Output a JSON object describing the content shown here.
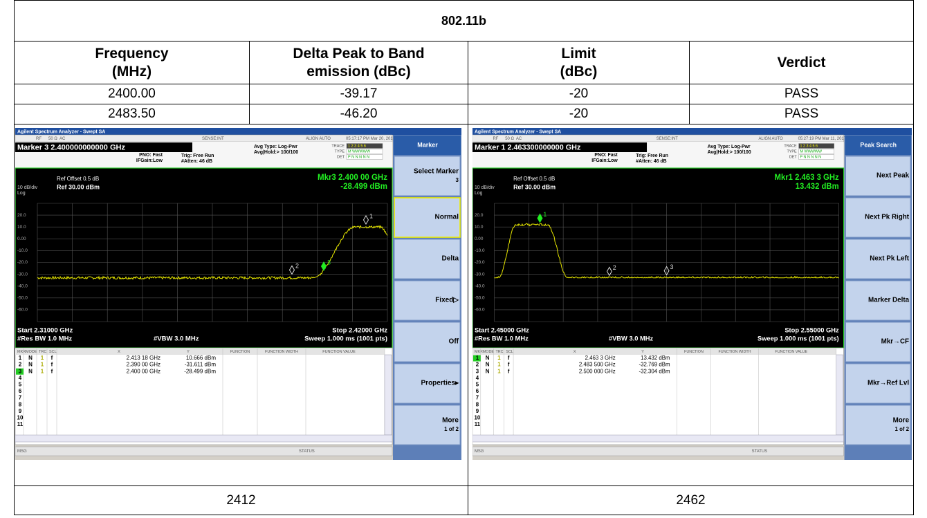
{
  "table": {
    "title": "802.11b",
    "header": [
      [
        "Frequency",
        "(MHz)"
      ],
      [
        "Delta Peak to Band",
        "emission (dBc)"
      ],
      [
        "Limit",
        "(dBc)"
      ],
      [
        "Verdict"
      ]
    ],
    "rows": [
      [
        "2400.00",
        "-39.17",
        "-20",
        "PASS"
      ],
      [
        "2483.50",
        "-46.20",
        "-20",
        "PASS"
      ]
    ]
  },
  "screens": [
    {
      "app": "Agilent Spectrum Analyzer - Swept SA",
      "status_bar": [
        "RF",
        "50 Ω",
        "AC",
        "SENSE:INT",
        "ALIGN AUTO",
        "05:17:17 PM Mar 20, 2017"
      ],
      "marker_readout": "Marker 3 2.400000000000 GHz",
      "settings": [
        "PNO: Fast",
        "IFGain:Low",
        "Trig: Free Run",
        "#Atten: 46 dB",
        "Avg Type: Log-Pwr",
        "Avg|Hold:> 100/100"
      ],
      "trace_labels": [
        "TRACE",
        "TYPE",
        "DET"
      ],
      "trace_codes": [
        "1 2 3 4 5 6",
        "M WWWWW",
        "P N N N N N"
      ],
      "ref_offset": "Ref Offset 0.5 dB",
      "scale": "10 dB/div",
      "ref_level": "Ref 30.00 dBm",
      "log": "Log",
      "mkr": [
        "Mkr3 2.400 00 GHz",
        "-28.499 dBm"
      ],
      "y_labels": [
        "20.0",
        "10.0",
        "0.00",
        "-10.0",
        "-20.0",
        "-30.0",
        "-40.0",
        "-50.0",
        "-60.0"
      ],
      "start": "Start 2.31000 GHz",
      "stop": "Stop 2.42000 GHz",
      "rbw": "#Res BW 1.0 MHz",
      "vbw": "#VBW 3.0 MHz",
      "sweep": "Sweep  1.000 ms (1001 pts)",
      "marker_labels": [
        "1",
        "2",
        "3"
      ],
      "table_header": [
        "MKR",
        "MODE",
        "TRC",
        "SCL",
        "X",
        "Y",
        "FUNCTION",
        "FUNCTION WIDTH",
        "FUNCTION VALUE"
      ],
      "markers": [
        [
          "1",
          "N",
          "1",
          "f",
          "2.413 18 GHz",
          "10.666 dBm"
        ],
        [
          "2",
          "N",
          "1",
          "f",
          "2.390 00 GHz",
          "-31.611 dBm"
        ],
        [
          "3",
          "N",
          "1",
          "f",
          "2.400 00 GHz",
          "-28.499 dBm"
        ]
      ],
      "empty_rows": [
        "4",
        "5",
        "6",
        "7",
        "8",
        "9",
        "10",
        "11"
      ],
      "msg": "MSG",
      "status": "STATUS",
      "menu_title": "Marker",
      "softkeys": [
        [
          "Select Marker",
          "3"
        ],
        [
          "Normal"
        ],
        [
          "Delta"
        ],
        [
          "Fixed▷"
        ],
        [
          "Off"
        ],
        [
          "Properties▸"
        ],
        [
          "More",
          "1 of 2"
        ]
      ]
    },
    {
      "app": "Agilent Spectrum Analyzer - Swept SA",
      "status_bar": [
        "RF",
        "50 Ω",
        "AC",
        "SENSE:INT",
        "ALIGN AUTO",
        "05:27:19 PM Mar 11, 2017"
      ],
      "marker_readout": "Marker 1 2.463300000000 GHz",
      "settings": [
        "PNO: Fast",
        "IFGain:Low",
        "Trig: Free Run",
        "#Atten: 46 dB",
        "Avg Type: Log-Pwr",
        "Avg|Hold:> 100/100"
      ],
      "trace_labels": [
        "TRACE",
        "TYPE",
        "DET"
      ],
      "trace_codes": [
        "1 2 3 4 5 6",
        "M WWWWW",
        "P N N N N N"
      ],
      "ref_offset": "Ref Offset 0.5 dB",
      "scale": "10 dB/div",
      "ref_level": "Ref 30.00 dBm",
      "log": "Log",
      "mkr": [
        "Mkr1 2.463 3 GHz",
        "13.432 dBm"
      ],
      "y_labels": [
        "20.0",
        "10.0",
        "0.00",
        "-10.0",
        "-20.0",
        "-30.0",
        "-40.0",
        "-50.0",
        "-60.0"
      ],
      "start": "Start 2.45000 GHz",
      "stop": "Stop 2.55000 GHz",
      "rbw": "#Res BW 1.0 MHz",
      "vbw": "#VBW 3.0 MHz",
      "sweep": "Sweep  1.000 ms (1001 pts)",
      "marker_labels": [
        "1",
        "2",
        "3"
      ],
      "table_header": [
        "MKR",
        "MODE",
        "TRC",
        "SCL",
        "X",
        "Y",
        "FUNCTION",
        "FUNCTION WIDTH",
        "FUNCTION VALUE"
      ],
      "markers": [
        [
          "1",
          "N",
          "1",
          "f",
          "2.463 3 GHz",
          "13.432 dBm"
        ],
        [
          "2",
          "N",
          "1",
          "f",
          "2.483 500 GHz",
          "-32.769 dBm"
        ],
        [
          "3",
          "N",
          "1",
          "f",
          "2.500 000 GHz",
          "-32.304 dBm"
        ]
      ],
      "empty_rows": [
        "4",
        "5",
        "6",
        "7",
        "8",
        "9",
        "10",
        "11"
      ],
      "msg": "MSG",
      "status": "STATUS",
      "menu_title": "Peak Search",
      "softkeys": [
        [
          "Next Peak"
        ],
        [
          "Next Pk Right"
        ],
        [
          "Next Pk Left"
        ],
        [
          "Marker Delta"
        ],
        [
          "Mkr→CF"
        ],
        [
          "Mkr→Ref Lvl"
        ],
        [
          "More",
          "1 of 2"
        ]
      ]
    }
  ],
  "captions": [
    "2412",
    "2462"
  ]
}
